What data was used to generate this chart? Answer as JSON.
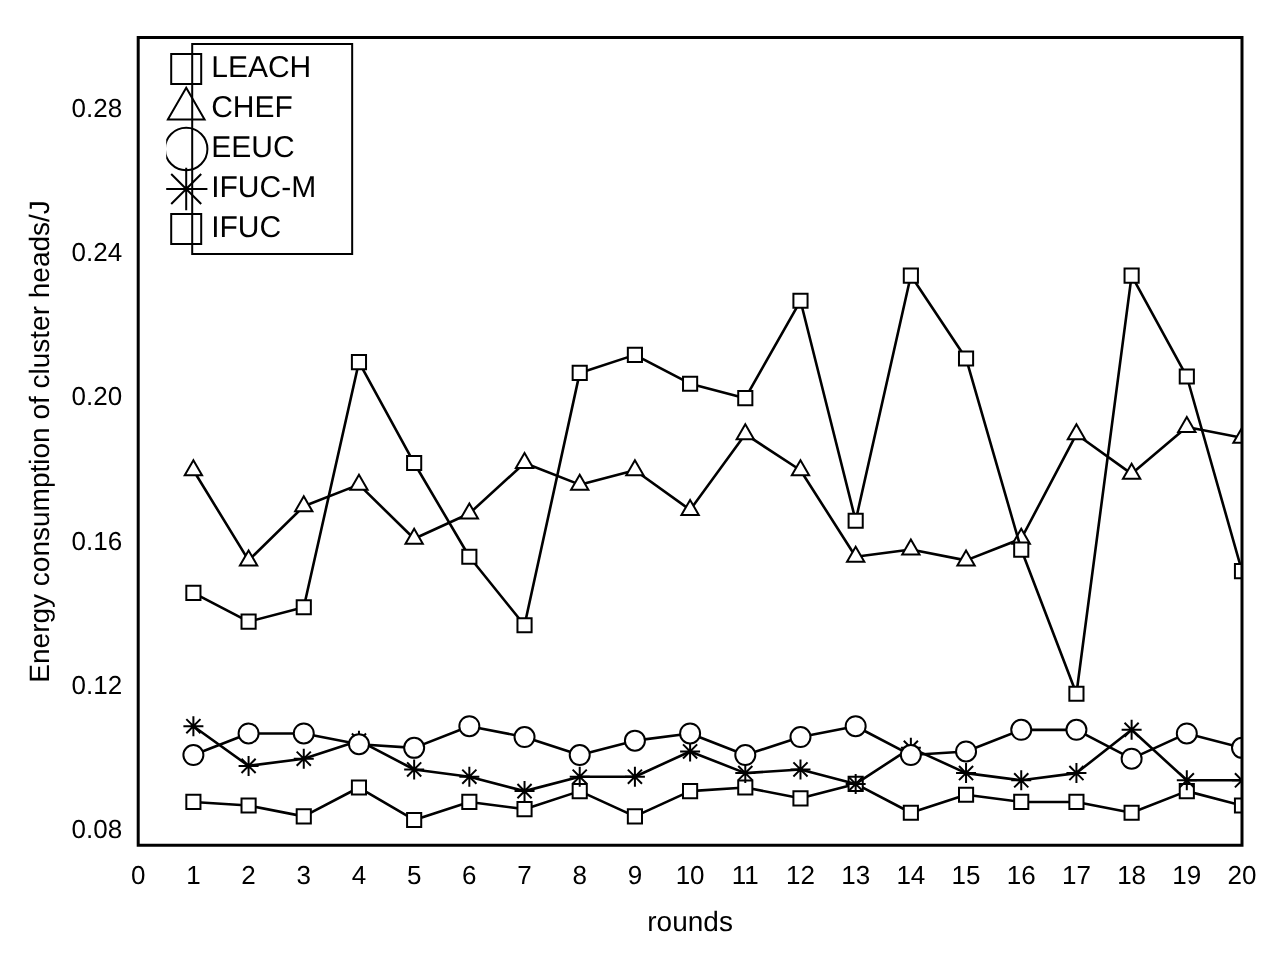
{
  "chart_data": {
    "type": "line",
    "xlabel": "rounds",
    "ylabel": "Energy consumption of cluster heads/J",
    "x": [
      1,
      2,
      3,
      4,
      5,
      6,
      7,
      8,
      9,
      10,
      11,
      12,
      13,
      14,
      15,
      16,
      17,
      18,
      19,
      20
    ],
    "series": [
      {
        "name": "LEACH",
        "color": "#000000",
        "marker": "square",
        "values": [
          0.146,
          0.138,
          0.142,
          0.21,
          0.182,
          0.156,
          0.137,
          0.207,
          0.212,
          0.204,
          0.2,
          0.227,
          0.166,
          0.234,
          0.211,
          0.158,
          0.118,
          0.234,
          0.206,
          0.152
        ]
      },
      {
        "name": "CHEF",
        "color": "#000000",
        "marker": "triangle",
        "values": [
          0.18,
          0.155,
          0.17,
          0.176,
          0.161,
          0.168,
          0.182,
          0.176,
          0.18,
          0.169,
          0.19,
          0.18,
          0.156,
          0.158,
          0.155,
          0.161,
          0.19,
          0.179,
          0.192,
          0.189
        ]
      },
      {
        "name": "EEUC",
        "color": "#000000",
        "marker": "circle",
        "values": [
          0.101,
          0.107,
          0.107,
          0.104,
          0.103,
          0.109,
          0.106,
          0.101,
          0.105,
          0.107,
          0.101,
          0.106,
          0.109,
          0.101,
          0.102,
          0.108,
          0.108,
          0.1,
          0.107,
          0.103
        ]
      },
      {
        "name": "IFUC-M",
        "color": "#000000",
        "marker": "cross",
        "values": [
          0.109,
          0.098,
          0.1,
          0.105,
          0.097,
          0.095,
          0.091,
          0.095,
          0.095,
          0.102,
          0.096,
          0.097,
          0.093,
          0.103,
          0.096,
          0.094,
          0.096,
          0.108,
          0.094,
          0.094
        ]
      },
      {
        "name": "IFUC",
        "color": "#000000",
        "marker": "square",
        "values": [
          0.088,
          0.087,
          0.084,
          0.092,
          0.083,
          0.088,
          0.086,
          0.091,
          0.084,
          0.091,
          0.092,
          0.089,
          0.093,
          0.085,
          0.09,
          0.088,
          0.088,
          0.085,
          0.091,
          0.087
        ]
      }
    ],
    "xlim": [
      0,
      20
    ],
    "xticks": [
      0,
      1,
      2,
      3,
      4,
      5,
      6,
      7,
      8,
      9,
      10,
      11,
      12,
      13,
      14,
      15,
      16,
      17,
      18,
      19,
      20
    ],
    "ylim": [
      0.076,
      0.3
    ],
    "yticks": [
      0.08,
      0.12,
      0.16,
      {
        "value": 0.2,
        "label": "0.20"
      },
      0.24,
      0.28
    ],
    "grid": false,
    "legend": "top left",
    "line_style": "solid"
  }
}
